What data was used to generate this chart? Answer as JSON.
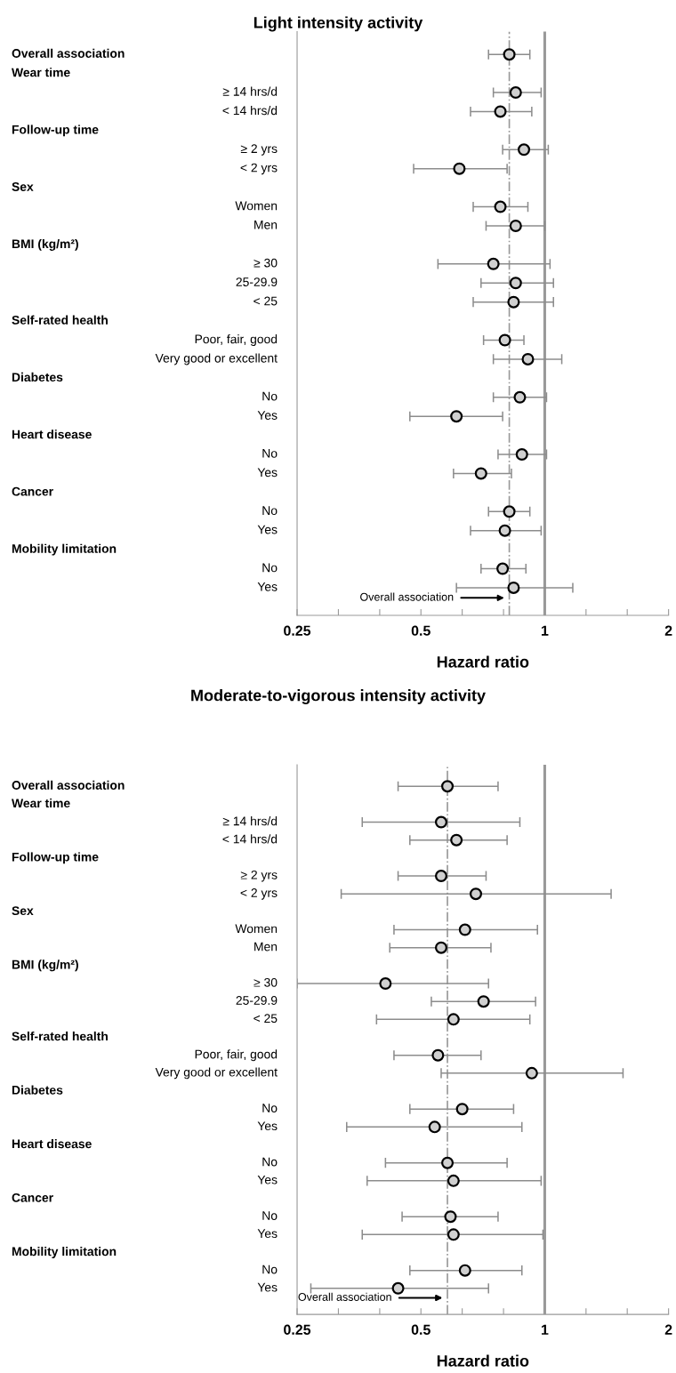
{
  "chart_data": [
    {
      "type": "scatter",
      "title": "Light intensity activity",
      "xlabel": "Hazard ratio",
      "orientation": "horizontal",
      "log": "x",
      "marker": "circle",
      "color": "#d0d0d0",
      "annotations": [
        "Overall association",
        "Wear time",
        "Follow-up time",
        "Sex",
        "BMI (kg/m²)",
        "Self-rated health",
        "Diabetes",
        "Heart disease",
        "Cancer",
        "Mobility limitation"
      ],
      "categories": [
        null,
        null,
        "≥ 14 hrs/d",
        "< 14 hrs/d",
        null,
        "≥ 2 yrs",
        "< 2 yrs",
        null,
        "Women",
        "Men",
        null,
        "≥ 30",
        "25-29.9",
        "< 25",
        null,
        "Poor, fair, good",
        "Very good or excellent",
        null,
        "No",
        "Yes",
        null,
        "No",
        "Yes",
        null,
        "No",
        "Yes",
        null,
        "No",
        "Yes"
      ],
      "values": [
        0.82,
        null,
        0.85,
        0.78,
        null,
        0.89,
        0.62,
        null,
        0.78,
        0.85,
        null,
        0.75,
        0.85,
        0.84,
        null,
        0.8,
        0.91,
        null,
        0.87,
        0.61,
        null,
        0.88,
        0.7,
        null,
        0.82,
        0.8,
        null,
        0.79,
        0.84
      ],
      "errors": [
        [
          0.73,
          0.92
        ],
        null,
        [
          0.75,
          0.98
        ],
        [
          0.66,
          0.93
        ],
        null,
        [
          0.79,
          1.02
        ],
        [
          0.48,
          0.81
        ],
        null,
        [
          0.67,
          0.91
        ],
        [
          0.72,
          1.0
        ],
        null,
        [
          0.55,
          1.03
        ],
        [
          0.7,
          1.05
        ],
        [
          0.67,
          1.05
        ],
        null,
        [
          0.71,
          0.89
        ],
        [
          0.75,
          1.1
        ],
        null,
        [
          0.75,
          1.01
        ],
        [
          0.47,
          0.79
        ],
        null,
        [
          0.77,
          1.01
        ],
        [
          0.6,
          0.83
        ],
        null,
        [
          0.73,
          0.92
        ],
        [
          0.66,
          0.98
        ],
        null,
        [
          0.7,
          0.9
        ],
        [
          0.61,
          1.17
        ]
      ],
      "xlim": [
        0.25,
        2
      ],
      "xticks": [
        0.25,
        {
          "value": 0.315,
          "label": null
        },
        {
          "value": 0.397,
          "label": null
        },
        0.5,
        {
          "value": 0.63,
          "label": null
        },
        {
          "value": 0.794,
          "label": null
        },
        1,
        {
          "value": 1.26,
          "label": null
        },
        {
          "value": 1.587,
          "label": null
        },
        2
      ],
      "ref_lines": [
        {
          "axis": "x",
          "value": 0.82,
          "label": "Overall association",
          "color": "#999999",
          "line_style": "dashdot"
        },
        {
          "axis": "x",
          "value": 1,
          "color": "#999999",
          "line_style": "solid"
        }
      ]
    },
    {
      "type": "scatter",
      "title": "Moderate-to-vigorous intensity activity",
      "xlabel": "Hazard ratio",
      "orientation": "horizontal",
      "log": "x",
      "marker": "circle",
      "color": "#d0d0d0",
      "annotations": [
        "Overall association",
        "Wear time",
        "Follow-up time",
        "Sex",
        "BMI (kg/m²)",
        "Self-rated health",
        "Diabetes",
        "Heart disease",
        "Cancer",
        "Mobility limitation"
      ],
      "categories": [
        null,
        null,
        "≥ 14 hrs/d",
        "< 14 hrs/d",
        null,
        "≥ 2 yrs",
        "< 2 yrs",
        null,
        "Women",
        "Men",
        null,
        "≥ 30",
        "25-29.9",
        "< 25",
        null,
        "Poor, fair, good",
        "Very good or excellent",
        null,
        "No",
        "Yes",
        null,
        "No",
        "Yes",
        null,
        "No",
        "Yes",
        null,
        "No",
        "Yes"
      ],
      "values": [
        0.58,
        null,
        0.56,
        0.61,
        null,
        0.56,
        0.68,
        null,
        0.64,
        0.56,
        null,
        0.41,
        0.71,
        0.6,
        null,
        0.55,
        0.93,
        null,
        0.63,
        0.54,
        null,
        0.58,
        0.6,
        null,
        0.59,
        0.6,
        null,
        0.64,
        0.44
      ],
      "errors": [
        [
          0.44,
          0.77
        ],
        null,
        [
          0.36,
          0.87
        ],
        [
          0.47,
          0.81
        ],
        null,
        [
          0.44,
          0.72
        ],
        [
          0.32,
          1.45
        ],
        null,
        [
          0.43,
          0.96
        ],
        [
          0.42,
          0.74
        ],
        null,
        [
          0.25,
          0.73
        ],
        [
          0.53,
          0.95
        ],
        [
          0.39,
          0.92
        ],
        null,
        [
          0.43,
          0.7
        ],
        [
          0.56,
          1.55
        ],
        null,
        [
          0.47,
          0.84
        ],
        [
          0.33,
          0.88
        ],
        null,
        [
          0.41,
          0.81
        ],
        [
          0.37,
          0.98
        ],
        null,
        [
          0.45,
          0.77
        ],
        [
          0.36,
          0.99
        ],
        null,
        [
          0.47,
          0.88
        ],
        [
          0.27,
          0.73
        ]
      ],
      "xlim": [
        0.25,
        2
      ],
      "xticks": [
        0.25,
        {
          "value": 0.315,
          "label": null
        },
        {
          "value": 0.397,
          "label": null
        },
        0.5,
        {
          "value": 0.63,
          "label": null
        },
        {
          "value": 0.794,
          "label": null
        },
        1,
        {
          "value": 1.26,
          "label": null
        },
        {
          "value": 1.587,
          "label": null
        },
        2
      ],
      "ref_lines": [
        {
          "axis": "x",
          "value": 0.58,
          "label": "Overall association",
          "color": "#999999",
          "line_style": "dashdot"
        },
        {
          "axis": "x",
          "value": 1,
          "color": "#999999",
          "line_style": "solid"
        }
      ]
    }
  ]
}
